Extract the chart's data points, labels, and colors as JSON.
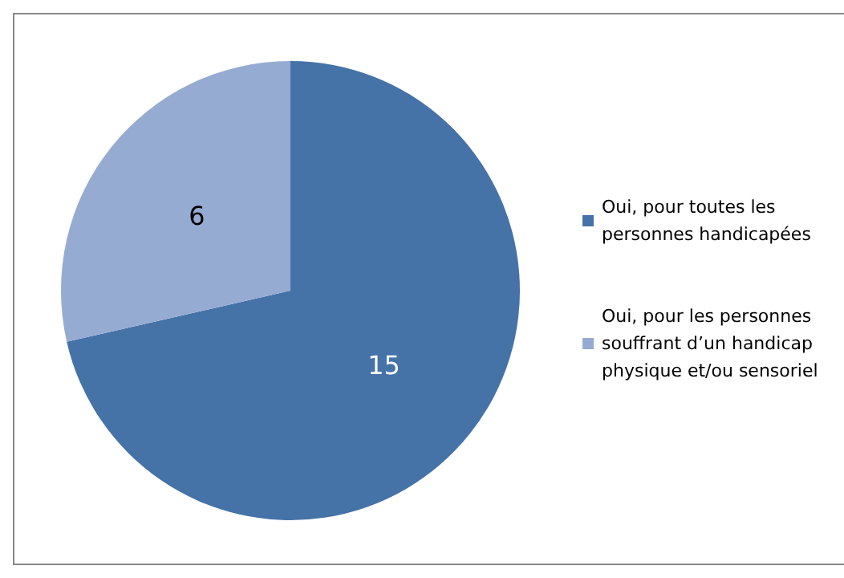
{
  "chart_data": {
    "type": "pie",
    "categories": [
      "Oui, pour toutes les personnes handicapées",
      "Oui, pour les personnes souffrant d’un handicap physique et/ou sensoriel"
    ],
    "values": [
      15,
      6
    ],
    "colors": [
      "#4572a7",
      "#96abd2"
    ],
    "data_labels": true,
    "legend": "right"
  }
}
